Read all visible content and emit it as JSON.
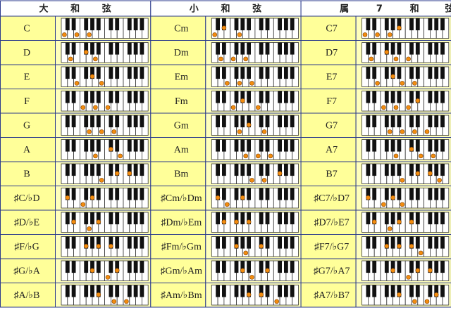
{
  "header": [
    [
      "大",
      "和",
      "弦"
    ],
    [
      "小",
      "和",
      "弦"
    ],
    [
      "属",
      "7",
      "和",
      "弦"
    ]
  ],
  "rows": [
    [
      "C",
      "Cm",
      "C7"
    ],
    [
      "D",
      "Dm",
      "D7"
    ],
    [
      "E",
      "Em",
      "E7"
    ],
    [
      "F",
      "Fm",
      "F7"
    ],
    [
      "G",
      "Gm",
      "G7"
    ],
    [
      "A",
      "Am",
      "A7"
    ],
    [
      "B",
      "Bm",
      "B7"
    ],
    [
      "♯C/♭D",
      "♯Cm/♭Dm",
      "♯C7/♭D7"
    ],
    [
      "♯D/♭E",
      "♯Dm/♭Em",
      "♯D7/♭E7"
    ],
    [
      "♯F/♭G",
      "♯Fm/♭Gm",
      "♯F7/♭G7"
    ],
    [
      "♯G/♭A",
      "♯Gm/♭Am",
      "♯G7/♭A7"
    ],
    [
      "♯A/♭B",
      "♯Am/♭Bm",
      "♯A7/♭B7"
    ]
  ]
}
